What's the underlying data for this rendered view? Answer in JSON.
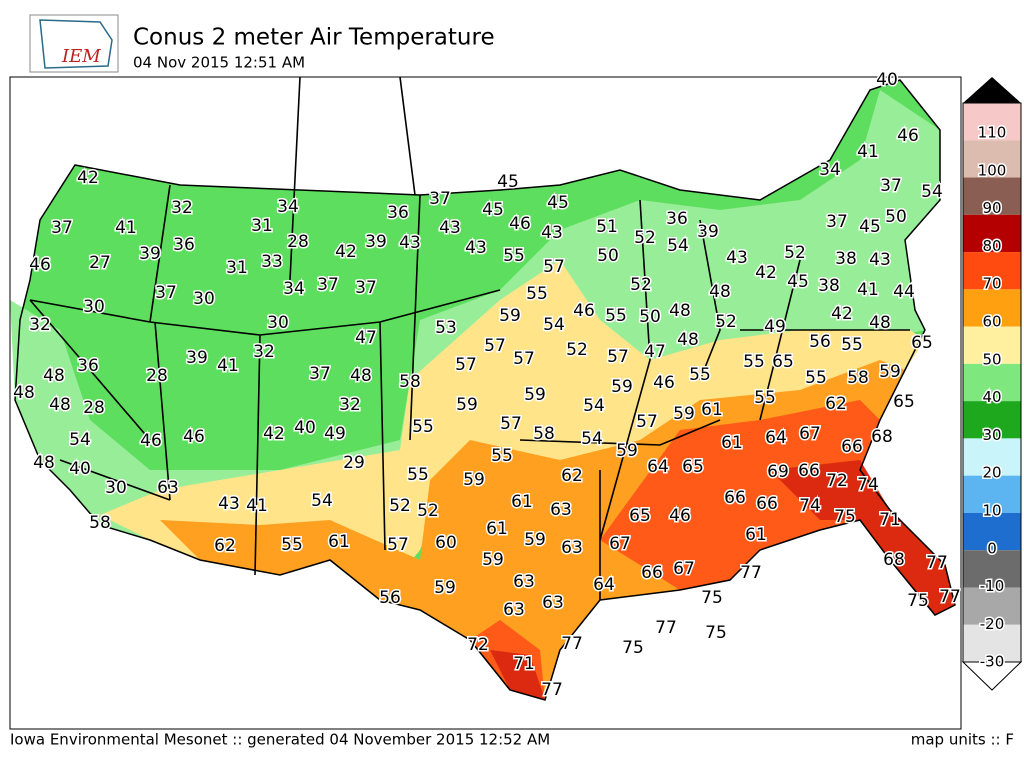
{
  "header": {
    "logo": "IEM",
    "title": "Conus 2 meter Air Temperature",
    "subtitle": "04 Nov 2015 12:51 AM"
  },
  "stations": {
    "values": [
      42,
      37,
      41,
      32,
      46,
      27,
      39,
      36,
      31,
      34,
      28,
      31,
      33,
      37,
      30,
      34,
      37,
      37,
      42,
      39,
      43,
      36,
      37,
      43,
      45,
      45,
      46,
      45,
      43,
      43,
      55,
      57,
      51,
      52,
      36,
      54,
      39,
      50,
      43,
      42,
      52,
      48,
      55,
      46,
      59,
      54,
      55,
      50,
      48,
      52,
      49,
      52,
      57,
      47,
      48,
      46,
      55,
      59,
      53,
      57,
      57,
      57,
      59,
      54,
      57,
      59,
      61,
      58,
      59,
      57,
      58,
      54,
      59,
      55,
      55,
      55,
      59,
      62,
      64,
      65,
      61,
      64,
      67,
      66,
      68,
      62,
      65,
      55,
      55,
      58,
      59,
      55,
      65,
      56,
      55,
      65,
      48,
      42,
      45,
      38,
      41,
      44,
      52,
      37,
      45,
      50,
      38,
      43,
      34,
      41,
      46,
      37,
      54,
      40,
      69,
      66,
      72,
      74,
      66,
      66,
      74,
      75,
      71,
      61,
      65,
      46,
      67,
      66,
      67,
      77,
      75,
      68,
      77,
      75,
      77,
      64,
      63,
      63,
      63,
      59,
      59,
      63,
      61,
      61,
      63,
      60,
      59,
      56,
      72,
      71,
      77,
      75,
      77,
      75,
      77,
      52,
      52,
      57,
      61,
      55,
      62,
      54,
      43,
      41,
      58,
      63,
      30,
      40,
      48,
      54,
      46,
      46,
      42,
      40,
      49,
      29,
      28,
      48,
      48,
      48,
      36,
      28,
      39,
      41,
      32,
      37,
      48,
      32,
      30,
      47,
      32,
      30
    ]
  },
  "colorbar": {
    "labels": [
      110,
      100,
      90,
      80,
      70,
      60,
      50,
      40,
      30,
      20,
      10,
      0,
      -10,
      -20,
      -30
    ],
    "colors": [
      "#f6c8c8",
      "#dcbcae",
      "#8a5e52",
      "#b40000",
      "#ff4a10",
      "#ffa010",
      "#fff0a0",
      "#7ee87e",
      "#1ea81e",
      "#c8f4fa",
      "#5cb4f0",
      "#1e6ed0",
      "#6c6c6c",
      "#a8a8a8",
      "#e4e4e4"
    ]
  },
  "footer": {
    "left": "Iowa Environmental Mesonet :: generated 04 November 2015 12:52 AM",
    "right": "map units :: F"
  }
}
